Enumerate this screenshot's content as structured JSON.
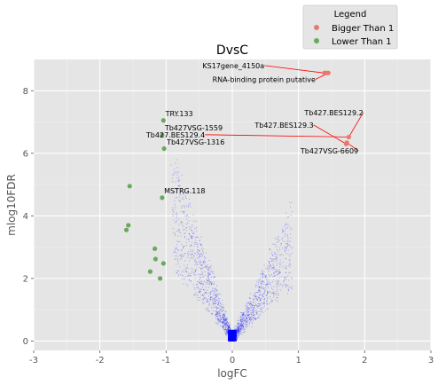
{
  "chart_data": {
    "type": "scatter",
    "title": "DvsC",
    "xlabel": "logFC",
    "ylabel": "mlog10FDR",
    "xlim": [
      -3,
      3
    ],
    "ylim": [
      -0.3,
      9.0
    ],
    "xticks": [
      -3,
      -2,
      -1,
      0,
      1,
      2,
      3
    ],
    "yticks": [
      0,
      2,
      4,
      6,
      8
    ],
    "grid": true,
    "legend": {
      "title": "Legend",
      "placement": "upper-right-outside",
      "entries": [
        {
          "name": "Bigger Than 1",
          "color": "#e8796e"
        },
        {
          "name": "Lower Than 1",
          "color": "#6aa85f"
        }
      ]
    },
    "background_series": {
      "color": "#0000ff",
      "description_shape": "volcano"
    },
    "series": [
      {
        "name": "Bigger Than 1",
        "color": "#e8796e",
        "points": [
          {
            "x": 1.39,
            "y": 8.57
          },
          {
            "x": 1.42,
            "y": 8.57
          },
          {
            "x": 1.45,
            "y": 8.57
          },
          {
            "x": 1.76,
            "y": 6.52
          },
          {
            "x": 1.72,
            "y": 6.3
          },
          {
            "x": 1.73,
            "y": 6.34
          }
        ]
      },
      {
        "name": "Lower Than 1",
        "color": "#6aa85f",
        "points": [
          {
            "x": -1.04,
            "y": 7.05
          },
          {
            "x": -1.06,
            "y": 6.58
          },
          {
            "x": -1.03,
            "y": 6.15
          },
          {
            "x": -1.55,
            "y": 4.95
          },
          {
            "x": -1.06,
            "y": 4.58
          },
          {
            "x": -1.57,
            "y": 3.7
          },
          {
            "x": -1.6,
            "y": 3.55
          },
          {
            "x": -1.17,
            "y": 2.95
          },
          {
            "x": -1.16,
            "y": 2.62
          },
          {
            "x": -1.04,
            "y": 2.48
          },
          {
            "x": -1.24,
            "y": 2.22
          },
          {
            "x": -1.09,
            "y": 2.0
          }
        ]
      }
    ],
    "annotations": [
      {
        "text": "KS17gene_4150a",
        "x": -0.45,
        "y": 8.72,
        "anchor": "start",
        "px": 1.38,
        "py": 8.57
      },
      {
        "text": "RNA-binding protein  putative",
        "x": -0.3,
        "y": 8.28,
        "anchor": "start",
        "px": 1.46,
        "py": 8.57
      },
      {
        "text": "TRY.133",
        "x": -1.01,
        "y": 7.18,
        "anchor": "start"
      },
      {
        "text": "Tb427VSG-1559",
        "x": -1.02,
        "y": 6.73,
        "anchor": "start"
      },
      {
        "text": "Tb427.BES129.4",
        "x": -1.3,
        "y": 6.51,
        "anchor": "start",
        "px": 1.76,
        "py": 6.52
      },
      {
        "text": "Tb427VSG-1316",
        "x": -0.99,
        "y": 6.28,
        "anchor": "start"
      },
      {
        "text": "MSTRG.118",
        "x": -1.03,
        "y": 4.72,
        "anchor": "start"
      },
      {
        "text": "Tb427.BES129.2",
        "x": 1.09,
        "y": 7.22,
        "anchor": "start",
        "px": 1.76,
        "py": 6.52
      },
      {
        "text": "Tb427.BES129.3",
        "x": 0.34,
        "y": 6.82,
        "anchor": "start",
        "px": 1.72,
        "py": 6.3
      },
      {
        "text": "Tb427VSG-6609",
        "x": 1.03,
        "y": 6.0,
        "anchor": "start",
        "px": 1.73,
        "py": 6.34
      }
    ]
  }
}
